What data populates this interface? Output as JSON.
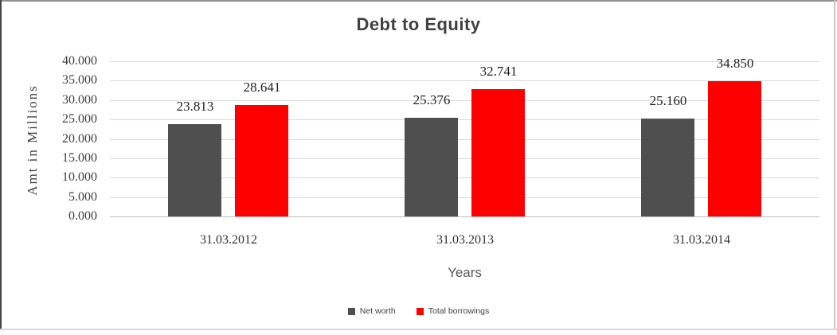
{
  "chart_data": {
    "type": "bar",
    "title": "Debt to Equity",
    "xlabel": "Years",
    "ylabel": "Amt in Millions",
    "categories": [
      "31.03.2012",
      "31.03.2013",
      "31.03.2014"
    ],
    "series": [
      {
        "name": "Net worth",
        "color": "#4f4f4f",
        "values": [
          23.813,
          25.376,
          25.16
        ],
        "labels": [
          "23.813",
          "25.376",
          "25.160"
        ]
      },
      {
        "name": "Total borrowings",
        "color": "#ff0000",
        "values": [
          28.641,
          32.741,
          34.85
        ],
        "labels": [
          "28.641",
          "32.741",
          "34.850"
        ]
      }
    ],
    "ylim": [
      0,
      40
    ],
    "ytick_step": 5,
    "yticks": [
      "40.000",
      "35.000",
      "30.000",
      "25.000",
      "20.000",
      "15.000",
      "10.000",
      "5.000",
      "0.000"
    ],
    "grid": true,
    "legend_position": "bottom",
    "colors": {
      "gridline": "#d9d9d9",
      "axis_line": "#bdbdbd",
      "title_text": "#404040",
      "tick_text": "#404040"
    }
  }
}
